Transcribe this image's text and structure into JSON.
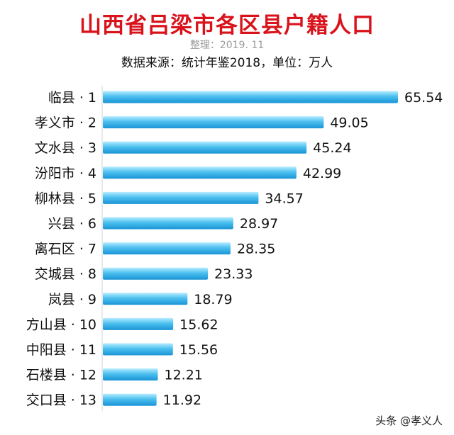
{
  "header": {
    "title": "山西省吕梁市各区县户籍人口",
    "organizer": "整理：2019. 11",
    "source": "数据来源：统计年鉴2018，单位：万人"
  },
  "watermark": "头条 @孝义人",
  "colors": {
    "title": "#d9121b",
    "bar_light": "#7fd6f7",
    "bar_dark": "#1a94d6"
  },
  "chart_data": {
    "type": "bar",
    "orientation": "horizontal",
    "title": "山西省吕梁市各区县户籍人口",
    "categories": [
      "临县 · 1",
      "孝义市 · 2",
      "文水县 · 3",
      "汾阳市 · 4",
      "柳林县 · 5",
      "兴县 · 6",
      "离石区 · 7",
      "交城县 · 8",
      "岚县 · 9",
      "方山县 · 10",
      "中阳县 · 11",
      "石楼县 · 12",
      "交口县 · 13"
    ],
    "values": [
      65.54,
      49.05,
      45.24,
      42.99,
      34.57,
      28.97,
      28.35,
      23.33,
      18.79,
      15.62,
      15.56,
      12.21,
      11.92
    ],
    "value_labels": [
      "65.54",
      "49.05",
      "45.24",
      "42.99",
      "34.57",
      "28.97",
      "28.35",
      "23.33",
      "18.79",
      "15.62",
      "15.56",
      "12.21",
      "11.92"
    ],
    "xlim": [
      0,
      65.54
    ],
    "grid": false,
    "legend": "none"
  }
}
